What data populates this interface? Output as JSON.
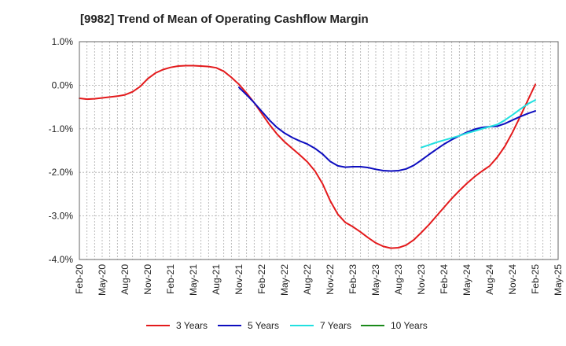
{
  "chart_data": {
    "type": "line",
    "title": "[9982]  Trend of Mean of Operating Cashflow Margin",
    "xlabel": "",
    "ylabel": "",
    "ylim": [
      -4.0,
      1.0
    ],
    "y_ticks": [
      1.0,
      0.0,
      -1.0,
      -2.0,
      -3.0,
      -4.0
    ],
    "y_tick_labels": [
      "1.0%",
      "0.0%",
      "-1.0%",
      "-2.0%",
      "-3.0%",
      "-4.0%"
    ],
    "x_range": [
      "2020-02",
      "2025-05"
    ],
    "x_tick_labels": [
      "Feb-20",
      "May-20",
      "Aug-20",
      "Nov-20",
      "Feb-21",
      "May-21",
      "Aug-21",
      "Nov-21",
      "Feb-22",
      "May-22",
      "Aug-22",
      "Nov-22",
      "Feb-23",
      "May-23",
      "Aug-23",
      "Nov-23",
      "Feb-24",
      "May-24",
      "Aug-24",
      "Nov-24",
      "Feb-25",
      "May-25"
    ],
    "grid": true,
    "legend_position": "bottom",
    "series": [
      {
        "name": "3 Years",
        "color": "#e31a1c",
        "x": [
          "2020-02",
          "2020-03",
          "2020-04",
          "2020-05",
          "2020-06",
          "2020-07",
          "2020-08",
          "2020-09",
          "2020-10",
          "2020-11",
          "2020-12",
          "2021-01",
          "2021-02",
          "2021-03",
          "2021-04",
          "2021-05",
          "2021-06",
          "2021-07",
          "2021-08",
          "2021-09",
          "2021-10",
          "2021-11",
          "2021-12",
          "2022-01",
          "2022-02",
          "2022-03",
          "2022-04",
          "2022-05",
          "2022-06",
          "2022-07",
          "2022-08",
          "2022-09",
          "2022-10",
          "2022-11",
          "2022-12",
          "2023-01",
          "2023-02",
          "2023-03",
          "2023-04",
          "2023-05",
          "2023-06",
          "2023-07",
          "2023-08",
          "2023-09",
          "2023-10",
          "2023-11",
          "2023-12",
          "2024-01",
          "2024-02",
          "2024-03",
          "2024-04",
          "2024-05",
          "2024-06",
          "2024-07",
          "2024-08",
          "2024-09",
          "2024-10",
          "2024-11",
          "2024-12",
          "2025-01",
          "2025-02"
        ],
        "values": [
          -0.3,
          -0.32,
          -0.31,
          -0.29,
          -0.27,
          -0.25,
          -0.22,
          -0.15,
          -0.03,
          0.15,
          0.28,
          0.36,
          0.41,
          0.44,
          0.45,
          0.45,
          0.44,
          0.43,
          0.4,
          0.32,
          0.18,
          0.02,
          -0.18,
          -0.4,
          -0.65,
          -0.9,
          -1.12,
          -1.3,
          -1.45,
          -1.6,
          -1.76,
          -1.97,
          -2.26,
          -2.65,
          -2.96,
          -3.15,
          -3.25,
          -3.37,
          -3.5,
          -3.62,
          -3.7,
          -3.74,
          -3.73,
          -3.67,
          -3.55,
          -3.38,
          -3.2,
          -3.0,
          -2.8,
          -2.6,
          -2.42,
          -2.25,
          -2.1,
          -1.97,
          -1.85,
          -1.65,
          -1.4,
          -1.08,
          -0.72,
          -0.35,
          0.02
        ]
      },
      {
        "name": "5 Years",
        "color": "#0d0dbf",
        "x": [
          "2021-11",
          "2021-12",
          "2022-01",
          "2022-02",
          "2022-03",
          "2022-04",
          "2022-05",
          "2022-06",
          "2022-07",
          "2022-08",
          "2022-09",
          "2022-10",
          "2022-11",
          "2022-12",
          "2023-01",
          "2023-02",
          "2023-03",
          "2023-04",
          "2023-05",
          "2023-06",
          "2023-07",
          "2023-08",
          "2023-09",
          "2023-10",
          "2023-11",
          "2023-12",
          "2024-01",
          "2024-02",
          "2024-03",
          "2024-04",
          "2024-05",
          "2024-06",
          "2024-07",
          "2024-08",
          "2024-09",
          "2024-10",
          "2024-11",
          "2024-12",
          "2025-01",
          "2025-02"
        ],
        "values": [
          -0.05,
          -0.22,
          -0.4,
          -0.6,
          -0.8,
          -0.97,
          -1.1,
          -1.2,
          -1.28,
          -1.35,
          -1.45,
          -1.58,
          -1.75,
          -1.85,
          -1.88,
          -1.87,
          -1.87,
          -1.89,
          -1.93,
          -1.96,
          -1.97,
          -1.96,
          -1.92,
          -1.84,
          -1.72,
          -1.59,
          -1.47,
          -1.35,
          -1.25,
          -1.16,
          -1.08,
          -1.01,
          -0.97,
          -0.95,
          -0.94,
          -0.88,
          -0.8,
          -0.72,
          -0.65,
          -0.59
        ]
      },
      {
        "name": "7 Years",
        "color": "#22e0e0",
        "x": [
          "2023-11",
          "2023-12",
          "2024-01",
          "2024-02",
          "2024-03",
          "2024-04",
          "2024-05",
          "2024-06",
          "2024-07",
          "2024-08",
          "2024-09",
          "2024-10",
          "2024-11",
          "2024-12",
          "2025-01",
          "2025-02"
        ],
        "values": [
          -1.43,
          -1.37,
          -1.31,
          -1.26,
          -1.21,
          -1.16,
          -1.1,
          -1.05,
          -1.0,
          -0.95,
          -0.9,
          -0.8,
          -0.68,
          -0.55,
          -0.43,
          -0.34
        ]
      },
      {
        "name": "10 Years",
        "color": "#1a8a1a",
        "x": [],
        "values": []
      }
    ]
  }
}
